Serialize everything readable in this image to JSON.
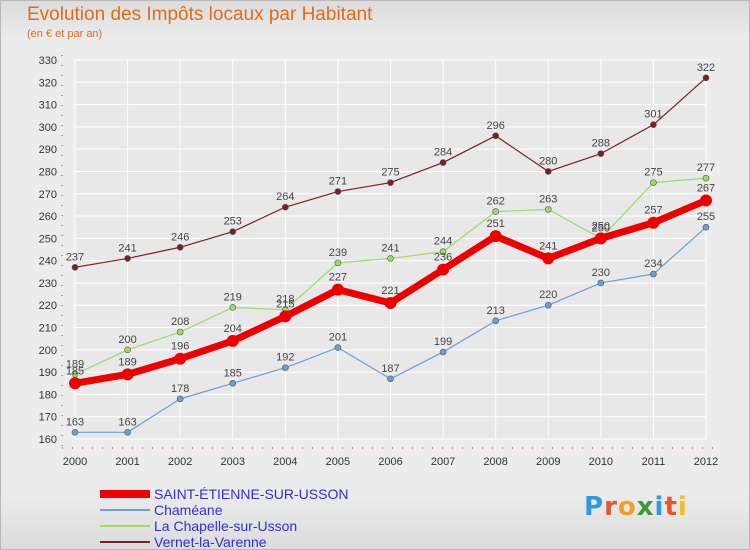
{
  "title": "Evolution des Impôts locaux par Habitant",
  "subtitle": "(en € et par an)",
  "logo": {
    "letters": [
      "P",
      "r",
      "o",
      "x",
      "i",
      "t",
      "i"
    ],
    "colors": [
      "#2e9be0",
      "#e8542b",
      "#f0a020",
      "#3a9a3a",
      "#2e9be0",
      "#e8542b",
      "#f0c020"
    ]
  },
  "chart_data": {
    "type": "line",
    "title": "Evolution des Impôts locaux par Habitant",
    "subtitle": "(en € et par an)",
    "x": [
      "2000",
      "2001",
      "2002",
      "2003",
      "2004",
      "2005",
      "2006",
      "2007",
      "2008",
      "2009",
      "2010",
      "2011",
      "2012"
    ],
    "ylim": [
      160,
      330
    ],
    "yticks": [
      "160",
      "170",
      "180",
      "190",
      "200",
      "210",
      "220",
      "230",
      "240",
      "250",
      "260",
      "270",
      "280",
      "290",
      "300",
      "310",
      "320",
      "330"
    ],
    "grid": true,
    "legend_position": "bottom-left",
    "series": [
      {
        "name": "Vernet-la-Varenne",
        "color": "#7a2020",
        "width": 1.2,
        "marker": 3,
        "values": [
          237,
          241,
          246,
          253,
          264,
          271,
          275,
          284,
          296,
          280,
          288,
          301,
          322
        ]
      },
      {
        "name": "La Chapelle-sur-Usson",
        "color": "#99dd66",
        "width": 1.2,
        "marker": 3,
        "values": [
          189,
          200,
          208,
          219,
          218,
          239,
          241,
          244,
          262,
          263,
          250,
          275,
          277
        ]
      },
      {
        "name": "Chaméane",
        "color": "#6a9fd8",
        "width": 1.2,
        "marker": 3,
        "values": [
          163,
          163,
          178,
          185,
          192,
          201,
          187,
          199,
          213,
          220,
          230,
          234,
          255
        ]
      },
      {
        "name": "SAINT-ÉTIENNE-SUR-USSON",
        "color": "#ee0000",
        "width": 7,
        "marker": 6,
        "values": [
          185,
          189,
          196,
          204,
          215,
          227,
          221,
          236,
          251,
          241,
          250,
          257,
          267
        ]
      }
    ],
    "legend": [
      "SAINT-ÉTIENNE-SUR-USSON",
      "Chaméane",
      "La Chapelle-sur-Usson",
      "Vernet-la-Varenne"
    ]
  }
}
